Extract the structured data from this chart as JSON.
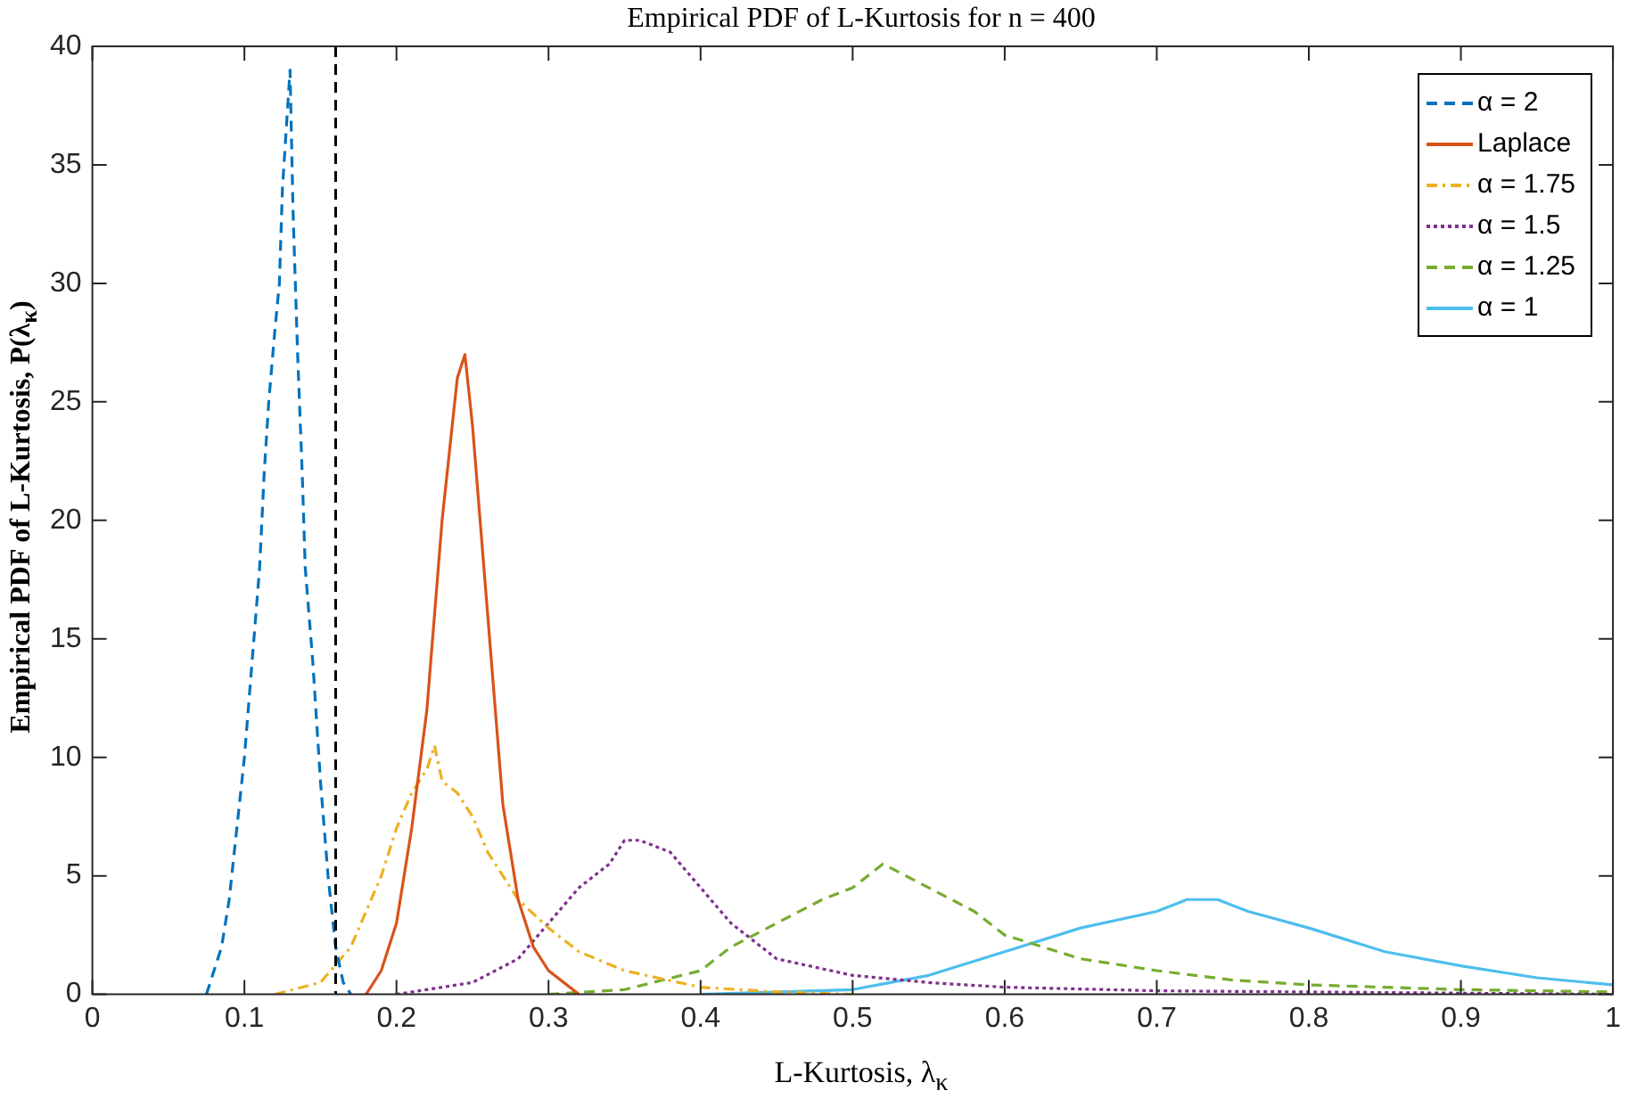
{
  "chart_data": {
    "type": "line",
    "title": "Empirical PDF of L-Kurtosis for n = 400",
    "xlabel": "L-Kurtosis, λ$_{κ}$",
    "ylabel": "Empirical PDF of L-Kurtosis, P(λ$_{κ}$)",
    "xlim": [
      0,
      1
    ],
    "xticks": [
      0,
      0.1,
      0.2,
      0.3,
      0.4,
      0.5,
      0.6,
      0.7,
      0.8,
      0.9,
      1
    ],
    "ylim": [
      0,
      40
    ],
    "yticks": [
      0,
      5,
      10,
      15,
      20,
      25,
      30,
      35,
      40
    ],
    "grid": false,
    "legend": "top right",
    "marker": "none",
    "ref_lines": [
      {
        "axis": "x",
        "value": 0.16,
        "color": "#000000",
        "line_style": "dashed"
      }
    ],
    "series": [
      {
        "name": "α = 2",
        "color": "#0072bd",
        "line_style": "dashed",
        "x": [
          0.075,
          0.08,
          0.085,
          0.09,
          0.095,
          0.1,
          0.105,
          0.11,
          0.113,
          0.116,
          0.12,
          0.123,
          0.125,
          0.128,
          0.13,
          0.132,
          0.135,
          0.138,
          0.14,
          0.145,
          0.15,
          0.155,
          0.16,
          0.165,
          0.17
        ],
        "values": [
          0,
          1,
          2,
          4,
          7,
          10,
          14,
          18,
          22,
          25,
          28,
          30,
          34,
          37,
          39,
          33,
          27,
          22,
          18,
          14,
          9,
          5,
          2,
          0.5,
          0
        ]
      },
      {
        "name": "Laplace",
        "color": "#d95319",
        "line_style": "solid",
        "x": [
          0.18,
          0.19,
          0.2,
          0.21,
          0.22,
          0.225,
          0.23,
          0.235,
          0.24,
          0.245,
          0.25,
          0.255,
          0.26,
          0.265,
          0.27,
          0.28,
          0.29,
          0.3,
          0.32
        ],
        "values": [
          0,
          1,
          3,
          7,
          12,
          16,
          20,
          23,
          26,
          27,
          24,
          20,
          16,
          12,
          8,
          4,
          2,
          1,
          0
        ]
      },
      {
        "name": "α = 1.75",
        "color": "#edb120",
        "line_style": "dashdot",
        "x": [
          0.12,
          0.15,
          0.17,
          0.19,
          0.2,
          0.21,
          0.22,
          0.225,
          0.23,
          0.24,
          0.25,
          0.26,
          0.27,
          0.28,
          0.3,
          0.32,
          0.35,
          0.4,
          0.45,
          0.5
        ],
        "values": [
          0,
          0.5,
          2,
          5,
          7,
          8.5,
          9.5,
          10.5,
          9,
          8.5,
          7.5,
          6,
          5,
          4,
          2.8,
          1.8,
          1,
          0.3,
          0.1,
          0
        ]
      },
      {
        "name": "α = 1.5",
        "color": "#7e2f8e",
        "line_style": "dotted",
        "x": [
          0.2,
          0.25,
          0.28,
          0.3,
          0.32,
          0.34,
          0.35,
          0.36,
          0.38,
          0.4,
          0.42,
          0.45,
          0.5,
          0.55,
          0.6,
          0.7,
          0.8,
          1
        ],
        "values": [
          0,
          0.5,
          1.5,
          3,
          4.5,
          5.5,
          6.5,
          6.5,
          6,
          4.5,
          3,
          1.5,
          0.8,
          0.5,
          0.3,
          0.15,
          0.1,
          0
        ]
      },
      {
        "name": "α = 1.25",
        "color": "#77ac30",
        "line_style": "dashed",
        "x": [
          0.3,
          0.35,
          0.4,
          0.42,
          0.45,
          0.48,
          0.5,
          0.52,
          0.55,
          0.58,
          0.6,
          0.65,
          0.7,
          0.75,
          0.8,
          0.9,
          1
        ],
        "values": [
          0,
          0.2,
          1,
          2,
          3,
          4,
          4.5,
          5.5,
          4.5,
          3.5,
          2.5,
          1.5,
          1,
          0.6,
          0.4,
          0.2,
          0.1
        ]
      },
      {
        "name": "α = 1",
        "color": "#4dbeee",
        "line_style": "solid",
        "x": [
          0.4,
          0.5,
          0.55,
          0.6,
          0.65,
          0.7,
          0.72,
          0.74,
          0.76,
          0.8,
          0.85,
          0.9,
          0.95,
          1
        ],
        "values": [
          0,
          0.2,
          0.8,
          1.8,
          2.8,
          3.5,
          4,
          4,
          3.5,
          2.8,
          1.8,
          1.2,
          0.7,
          0.4
        ]
      }
    ]
  }
}
